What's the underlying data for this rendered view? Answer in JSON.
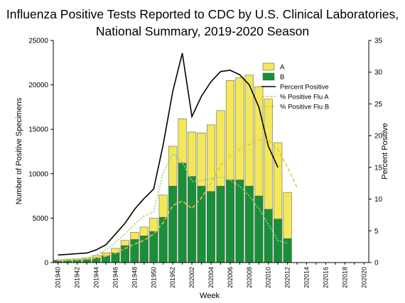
{
  "title_line1": "Influenza Positive Tests Reported to CDC by U.S. Clinical Laboratories,",
  "title_line2": "National Summary,  2019-2020 Season",
  "chart_data": {
    "type": "bar",
    "stacked": true,
    "xlabel": "Week",
    "ylabel": "Number of Positive Specimens",
    "ylabel_right": "Percent Positive",
    "ylim": [
      0,
      25000
    ],
    "ylim_right": [
      0,
      35
    ],
    "yticks": [
      "0",
      "5000",
      "10000",
      "15000",
      "20000",
      "25000"
    ],
    "yticks_right": [
      "0",
      "5",
      "10",
      "15",
      "20",
      "25",
      "30",
      "35"
    ],
    "xticks": [
      "201940",
      "201942",
      "201944",
      "201946",
      "201948",
      "201950",
      "201952",
      "202002",
      "202004",
      "202006",
      "202008",
      "202010",
      "202012",
      "202014",
      "202016",
      "202018",
      "202020"
    ],
    "weeks": [
      "201940",
      "201941",
      "201942",
      "201943",
      "201944",
      "201945",
      "201946",
      "201947",
      "201948",
      "201949",
      "201950",
      "201951",
      "201952",
      "202001",
      "202002",
      "202003",
      "202004",
      "202005",
      "202006",
      "202007",
      "202008",
      "202009",
      "202010",
      "202011",
      "202012",
      "202013",
      "202014",
      "202015",
      "202016",
      "202017",
      "202018",
      "202019",
      "202020"
    ],
    "series": [
      {
        "name": "A",
        "type": "bar",
        "axis": "left",
        "color": "#f2e85a",
        "values": [
          80,
          100,
          130,
          170,
          250,
          350,
          500,
          600,
          800,
          1000,
          1500,
          2500,
          4500,
          5000,
          5000,
          6000,
          7500,
          8500,
          11200,
          11500,
          12500,
          12300,
          12400,
          8600,
          5200,
          null,
          null,
          null,
          null,
          null,
          null,
          null,
          null
        ]
      },
      {
        "name": "B",
        "type": "bar",
        "axis": "left",
        "color": "#1a8f3a",
        "values": [
          200,
          230,
          270,
          350,
          550,
          750,
          1100,
          1900,
          2600,
          3000,
          3500,
          5100,
          8600,
          11200,
          9700,
          8600,
          8000,
          8600,
          9300,
          9300,
          8600,
          7500,
          6000,
          4900,
          2700,
          null,
          null,
          null,
          null,
          null,
          null,
          null,
          null
        ]
      },
      {
        "name": "Percent Positive",
        "type": "line",
        "axis": "right",
        "color": "#000000",
        "values": [
          1.2,
          1.3,
          1.4,
          1.5,
          2.0,
          2.8,
          4.5,
          6.2,
          8.4,
          10.1,
          11.6,
          18.6,
          27.0,
          33.0,
          23.0,
          26.2,
          28.5,
          30.1,
          30.3,
          29.6,
          28.0,
          24.5,
          18.3,
          15.0,
          null,
          null,
          null,
          null,
          null,
          null,
          null,
          null,
          null
        ]
      },
      {
        "name": "% Positive Flu A",
        "type": "line",
        "axis": "right",
        "color": "#e5c43a",
        "dash": "dashed",
        "values": [
          0.3,
          0.35,
          0.4,
          0.5,
          0.7,
          1.0,
          1.5,
          2.2,
          2.9,
          3.5,
          4.5,
          6.3,
          9.0,
          9.7,
          8.5,
          10.2,
          12.5,
          15.3,
          16.8,
          17.8,
          18.6,
          19.3,
          19.3,
          17.8,
          15.0,
          11.8,
          null,
          null,
          null,
          null,
          null,
          null,
          null
        ]
      },
      {
        "name": "% Positive Flu B",
        "type": "line",
        "axis": "right",
        "color": "#9fd16b",
        "dash": "dotted",
        "values": [
          0.5,
          0.55,
          0.6,
          0.7,
          1.2,
          2.0,
          3.2,
          4.5,
          6.0,
          7.3,
          8.0,
          14.2,
          17.2,
          15.8,
          12.8,
          12.9,
          13.2,
          13.5,
          13.0,
          12.0,
          10.5,
          8.5,
          6.0,
          3.5,
          3.0,
          null,
          null,
          null,
          null,
          null,
          null,
          null,
          null
        ]
      }
    ],
    "legend": [
      "A",
      "B",
      "Percent Positive",
      "% Positive Flu A",
      "% Positive Flu B"
    ],
    "legend_position": "top-right",
    "grid": false
  }
}
